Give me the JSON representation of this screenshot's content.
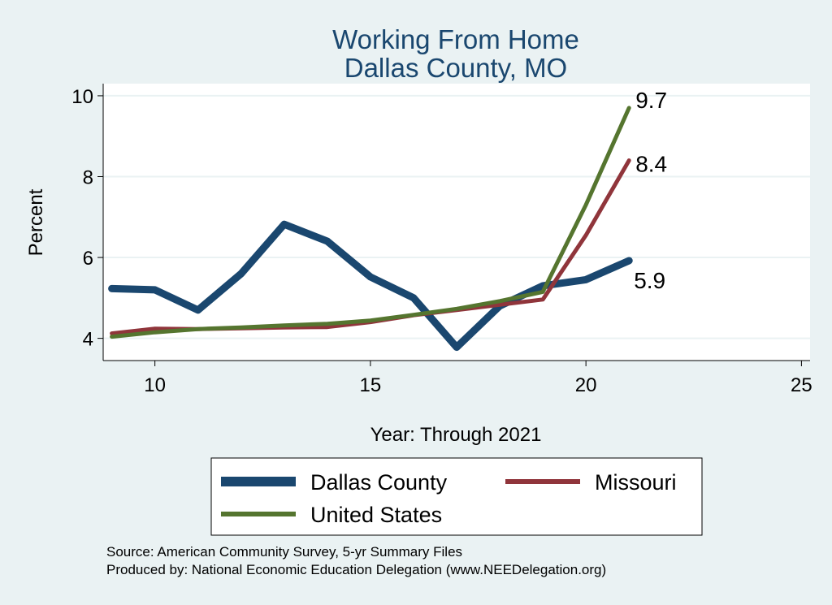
{
  "chart_data": {
    "type": "line",
    "title": [
      "Working From Home",
      "Dallas County, MO"
    ],
    "xlabel": "Year: Through 2021",
    "ylabel": "Percent",
    "xlim": [
      8.8,
      25.2
    ],
    "ylim": [
      3.45,
      10.3
    ],
    "xticks": [
      10,
      15,
      20,
      25
    ],
    "yticks": [
      4,
      6,
      8,
      10
    ],
    "grid": true,
    "legend_position": "bottom",
    "series": [
      {
        "name": "Dallas County",
        "color": "#1a476f",
        "x": [
          9,
          10,
          11,
          12,
          13,
          14,
          15,
          16,
          17,
          18,
          19,
          20,
          21
        ],
        "y": [
          5.23,
          5.2,
          4.7,
          5.6,
          6.82,
          6.4,
          5.52,
          5.0,
          3.78,
          4.8,
          5.3,
          5.45,
          5.92
        ],
        "end_label": "5.9"
      },
      {
        "name": "Missouri",
        "color": "#90353b",
        "x": [
          9,
          10,
          11,
          12,
          13,
          14,
          15,
          16,
          17,
          18,
          19,
          20,
          21
        ],
        "y": [
          4.12,
          4.24,
          4.23,
          4.25,
          4.27,
          4.28,
          4.4,
          4.57,
          4.7,
          4.83,
          4.96,
          6.55,
          8.4
        ],
        "end_label": "8.4"
      },
      {
        "name": "United States",
        "color": "#55752f",
        "x": [
          9,
          10,
          11,
          12,
          13,
          14,
          15,
          16,
          17,
          18,
          19,
          20,
          21
        ],
        "y": [
          4.04,
          4.15,
          4.23,
          4.27,
          4.32,
          4.36,
          4.44,
          4.58,
          4.73,
          4.92,
          5.15,
          7.3,
          9.7
        ],
        "end_label": "9.7"
      }
    ],
    "notes": [
      "Source: American Community Survey, 5-yr Summary Files",
      "Produced by: National Economic Education Delegation (www.NEEDelegation.org)"
    ]
  }
}
